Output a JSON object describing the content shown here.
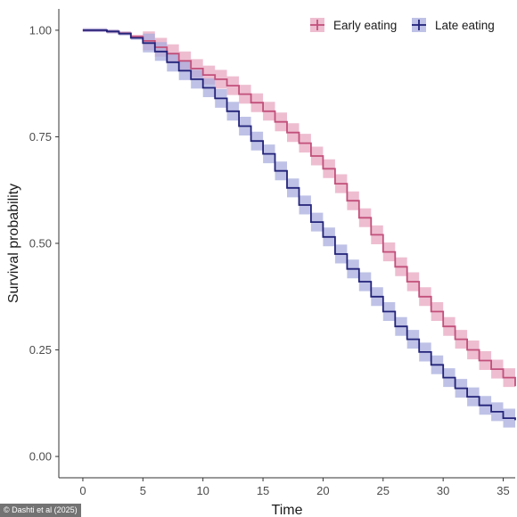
{
  "credit": "© Dashti et al (2025)",
  "chart_data": {
    "type": "line",
    "step": true,
    "xlabel": "Time",
    "ylabel": "Survival probability",
    "xlim": [
      -2,
      36
    ],
    "ylim": [
      -0.05,
      1.05
    ],
    "xticks": [
      0,
      5,
      10,
      15,
      20,
      25,
      30,
      35
    ],
    "yticks": [
      0.0,
      0.25,
      0.5,
      0.75,
      1.0
    ],
    "ytick_labels": [
      "0.00",
      "0.25",
      "0.50",
      "0.75",
      "1.00"
    ],
    "grid": false,
    "legend_position": "top-right",
    "series": [
      {
        "name": "Early eating",
        "color": "#c2507a",
        "band_color": "#e8a7c0",
        "x": [
          0,
          2,
          3,
          4,
          5,
          6,
          7,
          8,
          9,
          10,
          11,
          12,
          13,
          14,
          15,
          16,
          17,
          18,
          19,
          20,
          21,
          22,
          23,
          24,
          25,
          26,
          27,
          28,
          29,
          30,
          31,
          32,
          33,
          34,
          35,
          36
        ],
        "y": [
          1.0,
          0.997,
          0.993,
          0.985,
          0.975,
          0.96,
          0.945,
          0.928,
          0.91,
          0.895,
          0.885,
          0.87,
          0.85,
          0.83,
          0.81,
          0.785,
          0.76,
          0.735,
          0.705,
          0.675,
          0.64,
          0.6,
          0.56,
          0.52,
          0.48,
          0.445,
          0.41,
          0.375,
          0.34,
          0.305,
          0.275,
          0.25,
          0.225,
          0.205,
          0.185,
          0.165
        ],
        "band": 0.022
      },
      {
        "name": "Late eating",
        "color": "#23237a",
        "band_color": "#a9addd",
        "x": [
          0,
          2,
          3,
          4,
          5,
          6,
          7,
          8,
          9,
          10,
          11,
          12,
          13,
          14,
          15,
          16,
          17,
          18,
          19,
          20,
          21,
          22,
          23,
          24,
          25,
          26,
          27,
          28,
          29,
          30,
          31,
          32,
          33,
          34,
          35,
          36
        ],
        "y": [
          1.0,
          0.997,
          0.992,
          0.982,
          0.97,
          0.95,
          0.925,
          0.905,
          0.885,
          0.865,
          0.84,
          0.81,
          0.775,
          0.74,
          0.71,
          0.67,
          0.63,
          0.59,
          0.55,
          0.515,
          0.475,
          0.44,
          0.41,
          0.375,
          0.34,
          0.305,
          0.275,
          0.245,
          0.215,
          0.185,
          0.16,
          0.14,
          0.12,
          0.105,
          0.09,
          0.085
        ],
        "band": 0.022
      }
    ]
  }
}
